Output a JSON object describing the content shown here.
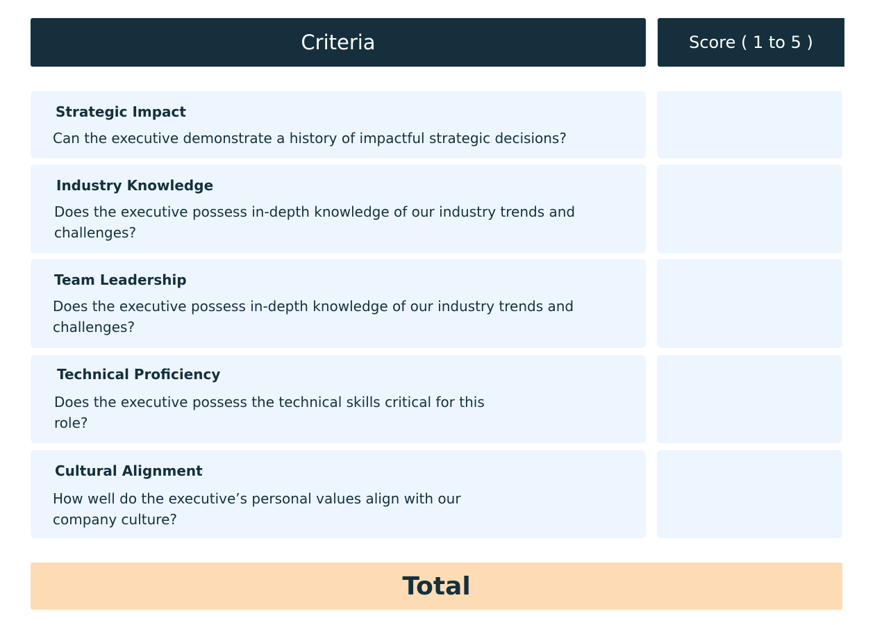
{
  "header": {
    "criteria_label": "Criteria",
    "score_label": "Score ( 1 to 5 )"
  },
  "rows": [
    {
      "title": "Strategic Impact",
      "description": "Can the executive demonstrate a history of impactful strategic decisions?",
      "score": ""
    },
    {
      "title": "Industry Knowledge",
      "description": "Does the executive possess in-depth knowledge of our industry trends and challenges?",
      "score": ""
    },
    {
      "title": "Team Leadership",
      "description": "Does the executive possess in-depth knowledge of our industry trends and challenges?",
      "score": ""
    },
    {
      "title": "Technical Proficiency",
      "description": "Does the executive possess the technical skills critical for this role?",
      "score": ""
    },
    {
      "title": "Cultural Alignment",
      "description": "How well do the executive’s personal values align with our company culture?",
      "score": ""
    }
  ],
  "footer": {
    "total_label": "Total"
  },
  "colors": {
    "header_bg": "#15303c",
    "row_bg": "#edf6fe",
    "total_bg": "#fddcb5",
    "text": "#14303c"
  }
}
